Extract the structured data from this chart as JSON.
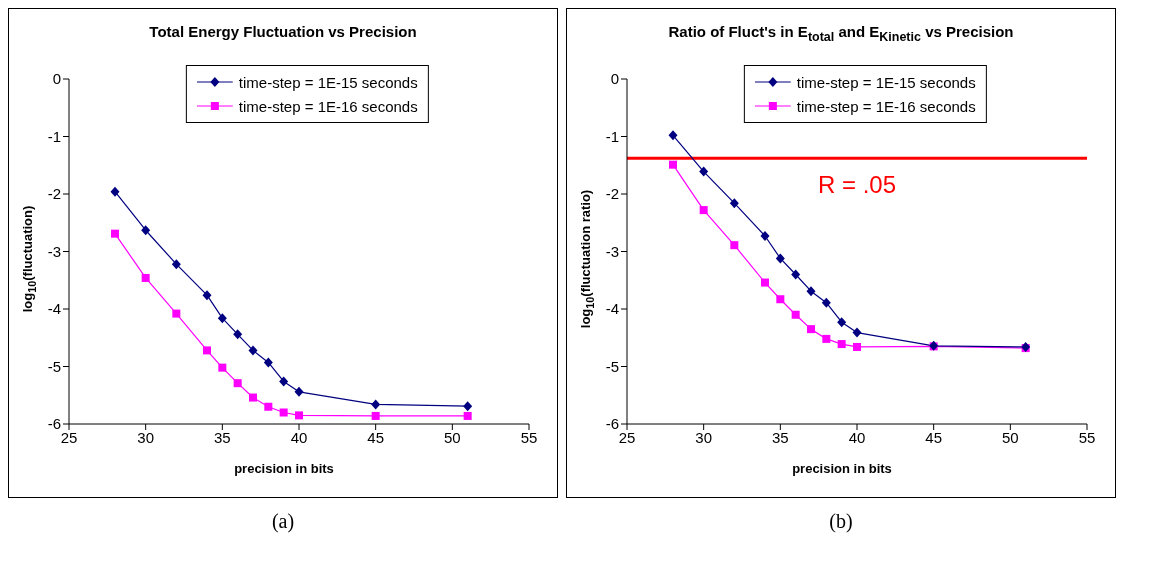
{
  "chart_data": [
    {
      "type": "line",
      "title": "Total Energy Fluctuation vs Precision",
      "xlabel": "precision in bits",
      "ylabel": "log$_{10}$(fluctuation)",
      "annotations": [
        "(a)"
      ],
      "x": [
        28,
        30,
        32,
        34,
        35,
        36,
        37,
        38,
        39,
        40,
        45,
        51
      ],
      "series": [
        {
          "name": "time-step = 1E-15 seconds",
          "color": "#000080",
          "marker": "diamond",
          "values": [
            -1.96,
            -2.63,
            -3.22,
            -3.76,
            -4.16,
            -4.44,
            -4.72,
            -4.93,
            -5.26,
            -5.44,
            -5.66,
            -5.69
          ]
        },
        {
          "name": "time-step = 1E-16 seconds",
          "color": "#ff00ff",
          "marker": "square",
          "values": [
            -2.69,
            -3.46,
            -4.08,
            -4.72,
            -5.02,
            -5.29,
            -5.54,
            -5.7,
            -5.8,
            -5.85,
            -5.86,
            -5.86
          ]
        }
      ],
      "xlim": [
        25,
        55
      ],
      "xticks": [
        25,
        30,
        35,
        40,
        45,
        50,
        55
      ],
      "ylim": [
        -6,
        0
      ],
      "yticks": [
        -6,
        -5,
        -4,
        -3,
        -2,
        -1,
        0
      ],
      "legend": "top",
      "grid": false
    },
    {
      "type": "line",
      "title": "Ratio of Fluct's in E$_{total}$ and E$_{Kinetic}$ vs Precision",
      "xlabel": "precision in bits",
      "ylabel": "log$_{10}$(fluctuation ratio)",
      "annotations": [
        "(b)"
      ],
      "x": [
        28,
        30,
        32,
        34,
        35,
        36,
        37,
        38,
        39,
        40,
        45,
        51
      ],
      "series": [
        {
          "name": "time-step = 1E-15 seconds",
          "color": "#000080",
          "marker": "diamond",
          "values": [
            -0.98,
            -1.61,
            -2.16,
            -2.73,
            -3.12,
            -3.4,
            -3.69,
            -3.89,
            -4.23,
            -4.41,
            -4.64,
            -4.66
          ]
        },
        {
          "name": "time-step = 1E-16 seconds",
          "color": "#ff00ff",
          "marker": "square",
          "values": [
            -1.49,
            -2.28,
            -2.89,
            -3.54,
            -3.83,
            -4.1,
            -4.35,
            -4.52,
            -4.61,
            -4.66,
            -4.65,
            -4.68
          ]
        }
      ],
      "ref_lines": [
        {
          "axis": "y",
          "value": -1.38,
          "label": "R = .05",
          "color": "#ff0000"
        }
      ],
      "xlim": [
        25,
        55
      ],
      "xticks": [
        25,
        30,
        35,
        40,
        45,
        50,
        55
      ],
      "ylim": [
        -6,
        0
      ],
      "yticks": [
        -6,
        -5,
        -4,
        -3,
        -2,
        -1,
        0
      ],
      "legend": "top",
      "grid": false
    }
  ]
}
